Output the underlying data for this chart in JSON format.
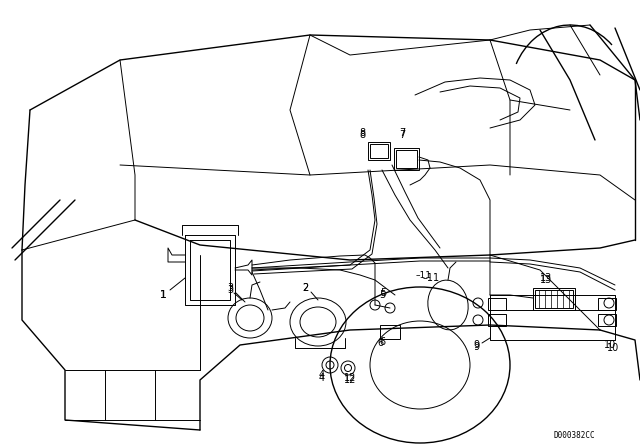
{
  "bg_color": "#ffffff",
  "line_color": "#000000",
  "fig_width": 6.4,
  "fig_height": 4.48,
  "dpi": 100,
  "watermark": "D000382CC"
}
